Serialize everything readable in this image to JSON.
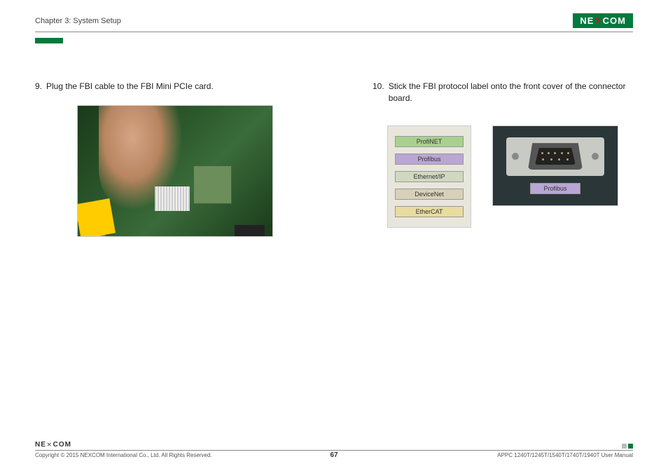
{
  "header": {
    "chapter": "Chapter 3: System Setup",
    "logo_left": "NE",
    "logo_x": "✕",
    "logo_right": "COM"
  },
  "step9": {
    "num": "9.",
    "text": "Plug the FBI cable to the FBI Mini PCIe card."
  },
  "step10": {
    "num": "10.",
    "text": "Stick the FBI protocol label onto the front cover of the connector board."
  },
  "labels": {
    "items": [
      {
        "name": "ProfiNET",
        "bg": "#a9d08e"
      },
      {
        "name": "Profibus",
        "bg": "#b9a6d4"
      },
      {
        "name": "Ethernet/IP",
        "bg": "#d0d8c0"
      },
      {
        "name": "DeviceNet",
        "bg": "#d8d0b8"
      },
      {
        "name": "EtherCAT",
        "bg": "#e8dca0"
      }
    ],
    "applied": {
      "name": "Profibus",
      "bg": "#b9a6d4"
    }
  },
  "footer": {
    "logo_left": "NE",
    "logo_x": "✕",
    "logo_right": "COM",
    "copyright": "Copyright © 2015 NEXCOM International Co., Ltd. All Rights Reserved.",
    "page": "67",
    "doc": "APPC 1240T/1245T/1540T/1740T/1940T User Manual"
  }
}
